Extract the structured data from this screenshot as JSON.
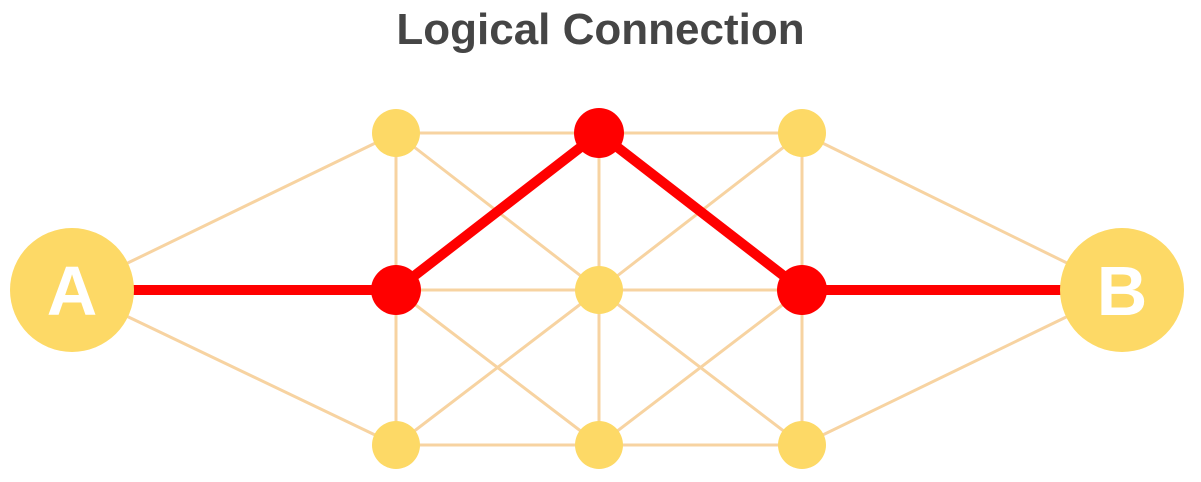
{
  "diagram": {
    "title": "Logical Connection",
    "colors": {
      "title": "#454545",
      "node": "#fdd966",
      "path": "#ff0000",
      "mesh_edge": "#f7d3a1",
      "endpoint_label": "#ffffff"
    },
    "nodes": [
      {
        "id": "A",
        "label": "A",
        "kind": "endpoint"
      },
      {
        "id": "B",
        "label": "B",
        "kind": "endpoint"
      },
      {
        "id": "n1",
        "label": "",
        "kind": "relay"
      },
      {
        "id": "n2",
        "label": "",
        "kind": "relay"
      },
      {
        "id": "n3",
        "label": "",
        "kind": "relay"
      },
      {
        "id": "n4",
        "label": "",
        "kind": "relay"
      },
      {
        "id": "n5",
        "label": "",
        "kind": "relay"
      },
      {
        "id": "n6",
        "label": "",
        "kind": "relay"
      },
      {
        "id": "n7",
        "label": "",
        "kind": "relay"
      },
      {
        "id": "n8",
        "label": "",
        "kind": "relay"
      },
      {
        "id": "n9",
        "label": "",
        "kind": "relay"
      }
    ],
    "edges": [
      [
        "A",
        "n1"
      ],
      [
        "A",
        "n2"
      ],
      [
        "A",
        "n3"
      ],
      [
        "n1",
        "n2"
      ],
      [
        "n2",
        "n3"
      ],
      [
        "n1",
        "n4"
      ],
      [
        "n1",
        "n5"
      ],
      [
        "n2",
        "n5"
      ],
      [
        "n2",
        "n4"
      ],
      [
        "n2",
        "n6"
      ],
      [
        "n3",
        "n5"
      ],
      [
        "n3",
        "n6"
      ],
      [
        "n4",
        "n5"
      ],
      [
        "n5",
        "n6"
      ],
      [
        "n4",
        "n7"
      ],
      [
        "n4",
        "n8"
      ],
      [
        "n5",
        "n7"
      ],
      [
        "n5",
        "n8"
      ],
      [
        "n5",
        "n9"
      ],
      [
        "n6",
        "n8"
      ],
      [
        "n6",
        "n9"
      ],
      [
        "n7",
        "n8"
      ],
      [
        "n8",
        "n9"
      ],
      [
        "n7",
        "B"
      ],
      [
        "n8",
        "B"
      ],
      [
        "n9",
        "B"
      ]
    ],
    "highlighted_path": [
      "A",
      "n2",
      "n4",
      "n8",
      "B"
    ]
  }
}
